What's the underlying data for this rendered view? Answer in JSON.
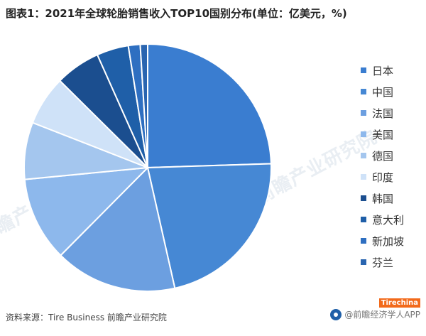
{
  "title": "图表1：2021年全球轮胎销售收入TOP10国别分布(单位：亿美元，%)",
  "footer": {
    "source": "资料来源：Tire Business 前瞻产业研究院",
    "brand": "@前瞻经济学人APP"
  },
  "badge": "Tirechina",
  "watermark": {
    "text": "前瞻产业研究院"
  },
  "colors": {
    "text": "#222222",
    "slice_border": "#ffffff"
  },
  "chart_data": {
    "type": "pie",
    "title": "图表1：2021年全球轮胎销售收入TOP10国别分布(单位：亿美元，%)",
    "legend_position": "right",
    "categories": [
      "日本",
      "中国",
      "法国",
      "美国",
      "德国",
      "印度",
      "韩国",
      "意大利",
      "新加坡",
      "芬兰"
    ],
    "values": [
      25.3,
      22.7,
      16.5,
      11.4,
      7.7,
      6.7,
      6.1,
      4.3,
      1.6,
      1.0
    ],
    "colors": [
      "#3a7dd0",
      "#4688d4",
      "#6c9fe0",
      "#8db8ec",
      "#a4c6ee",
      "#cfe2f8",
      "#1b4e8f",
      "#1f5fa8",
      "#2e6fc1",
      "#2a65b0"
    ]
  }
}
